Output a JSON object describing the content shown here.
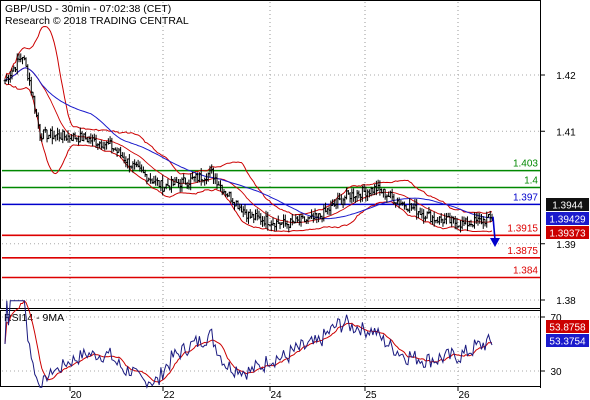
{
  "header": {
    "line1": "GBP/USD - 30min - 07:02:38 (CET)",
    "line2": "Research © 2018 TRADING CENTRAL"
  },
  "colors": {
    "candles": "#000000",
    "upper_band": "#cc0000",
    "ma": "#1a1acc",
    "support": "#dd0000",
    "resistance": "#008800",
    "pivot": "#0000cc",
    "arrow": "#0000cc",
    "rsi": "#1a1a80",
    "rsi_ma": "#cc0000"
  },
  "chart_data": [
    {
      "type": "candlestick",
      "x_tick_labels": [
        "20",
        "22",
        "24",
        "25",
        "26"
      ],
      "y_tick_labels": [
        "1.42",
        "1.41",
        "1.39",
        "1.38"
      ],
      "ylim": [
        1.3772,
        1.4287
      ],
      "levels": [
        {
          "value": 1.403,
          "label": "1.403",
          "role": "resistance"
        },
        {
          "value": 1.4,
          "label": "1.4",
          "role": "resistance"
        },
        {
          "value": 1.397,
          "label": "1.397",
          "role": "pivot"
        },
        {
          "value": 1.3915,
          "label": "1.3915",
          "role": "support"
        },
        {
          "value": 1.3875,
          "label": "1.3875",
          "role": "support"
        },
        {
          "value": 1.384,
          "label": "1.384",
          "role": "support"
        }
      ],
      "price_tags": [
        {
          "label": "1.3944",
          "value": 1.3944,
          "style": "dark"
        },
        {
          "label": "1.39429",
          "value": 1.39429,
          "style": "blue"
        },
        {
          "label": "1.39373",
          "value": 1.39373,
          "style": "red"
        }
      ],
      "anchors": [
        {
          "t": 0,
          "v": 1.419
        },
        {
          "t": 10,
          "v": 1.4235
        },
        {
          "t": 14,
          "v": 1.419
        },
        {
          "t": 20,
          "v": 1.4095
        },
        {
          "t": 45,
          "v": 1.4088
        },
        {
          "t": 60,
          "v": 1.4075
        },
        {
          "t": 75,
          "v": 1.4032
        },
        {
          "t": 90,
          "v": 1.4002
        },
        {
          "t": 105,
          "v": 1.4012
        },
        {
          "t": 118,
          "v": 1.4026
        },
        {
          "t": 125,
          "v": 1.3995
        },
        {
          "t": 140,
          "v": 1.3948
        },
        {
          "t": 160,
          "v": 1.3935
        },
        {
          "t": 178,
          "v": 1.3945
        },
        {
          "t": 195,
          "v": 1.3985
        },
        {
          "t": 212,
          "v": 1.3998
        },
        {
          "t": 225,
          "v": 1.3975
        },
        {
          "t": 245,
          "v": 1.3945
        },
        {
          "t": 262,
          "v": 1.3935
        },
        {
          "t": 278,
          "v": 1.3945
        }
      ],
      "forecast": {
        "from": 1.3948,
        "to": 1.3896
      }
    },
    {
      "type": "line",
      "title": "RSI14 - 9MA",
      "y_tick_labels": [
        "70",
        "30"
      ],
      "ylim": [
        17,
        83
      ],
      "price_tags": [
        {
          "label": "53.8758",
          "value": 53.8758,
          "style": "red"
        },
        {
          "label": "53.3754",
          "value": 53.3754,
          "style": "blue"
        }
      ]
    }
  ]
}
